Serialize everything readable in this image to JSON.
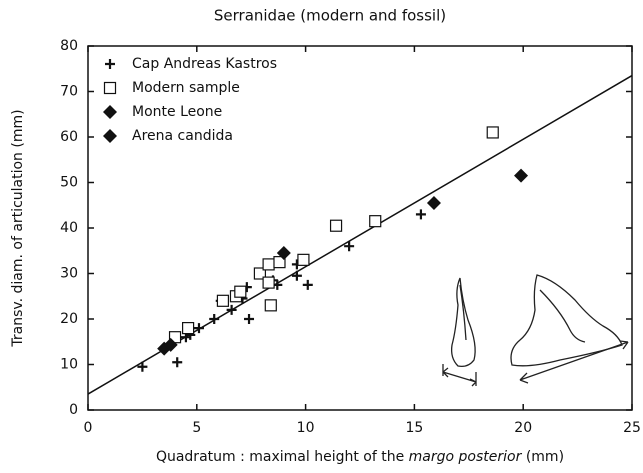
{
  "chart_data": {
    "type": "scatter",
    "title": "Serranidae (modern and fossil)",
    "xlabel": [
      {
        "text": "Quadratum : maximal height of the "
      },
      {
        "text": "margo posterior",
        "italic": true
      },
      {
        "text": " (mm)"
      }
    ],
    "ylabel": "Transv. diam. of articulation (mm)",
    "xlim": [
      0,
      25
    ],
    "ylim": [
      0,
      80
    ],
    "xticks": [
      0,
      5,
      10,
      15,
      20,
      25
    ],
    "yticks": [
      0,
      10,
      20,
      30,
      40,
      50,
      60,
      70,
      80
    ],
    "legend": "upper left",
    "series": [
      {
        "name": "Cap Andreas Kastros",
        "marker": "plus",
        "color": "#111",
        "x": [
          2.5,
          4.1,
          5.1,
          5.8,
          6.6,
          7.1,
          7.3,
          7.4,
          8.5,
          8.7,
          9.6,
          9.6,
          10.1,
          12.0,
          15.3,
          6.1,
          4.5,
          4.7
        ],
        "values": [
          9.5,
          10.5,
          18,
          20,
          22,
          24.5,
          27,
          20,
          28.5,
          27.5,
          32,
          29.5,
          27.5,
          36,
          43,
          24,
          16,
          16.5
        ]
      },
      {
        "name": "Modern sample",
        "marker": "square",
        "color": "#111",
        "x": [
          4.0,
          4.6,
          6.2,
          6.8,
          7.0,
          7.9,
          8.3,
          8.4,
          8.8,
          9.9,
          11.4,
          13.2,
          18.6,
          8.3
        ],
        "values": [
          16,
          18,
          24,
          25,
          26,
          30,
          32,
          23,
          32.5,
          33,
          40.5,
          41.5,
          61,
          28
        ]
      },
      {
        "name": "Monte Leone",
        "marker": "diamond",
        "color": "#111",
        "x": [
          3.5,
          9.0,
          19.9
        ],
        "values": [
          13.5,
          34.5,
          51.5
        ]
      },
      {
        "name": "Arena candida",
        "marker": "diamond",
        "color": "#111",
        "x": [
          3.8,
          15.9
        ],
        "values": [
          14.3,
          45.5
        ]
      }
    ],
    "fit_line": {
      "x": [
        0,
        25
      ],
      "values": [
        3.5,
        73.5
      ],
      "color": "#111"
    }
  }
}
